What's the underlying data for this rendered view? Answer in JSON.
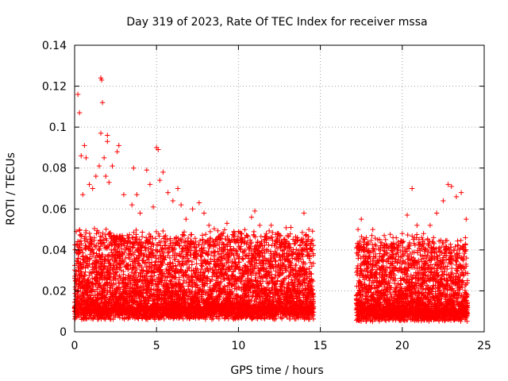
{
  "chart_data": {
    "type": "scatter",
    "title": "Day 319 of 2023, Rate Of TEC Index for receiver mssa",
    "xlabel": "GPS time / hours",
    "ylabel": "ROTI / TECUs",
    "xlim": [
      0,
      25
    ],
    "ylim": [
      0,
      0.14
    ],
    "xticks": [
      0,
      5,
      10,
      15,
      20,
      25
    ],
    "yticks": [
      0,
      0.02,
      0.04,
      0.06,
      0.08,
      0.1,
      0.12,
      0.14
    ],
    "xtick_labels": [
      "0",
      "5",
      "10",
      "15",
      "20",
      "25"
    ],
    "ytick_labels": [
      "0",
      "0.02",
      "0.04",
      "0.06",
      "0.08",
      "0.1",
      "0.12",
      "0.14"
    ],
    "grid": true,
    "marker": "+",
    "series_color": "#ff0000",
    "data_gap_hours": [
      14.6,
      17.2
    ],
    "series": [
      {
        "name": "ROTI",
        "points": [
          [
            0.1,
            0.049
          ],
          [
            0.2,
            0.116
          ],
          [
            0.3,
            0.107
          ],
          [
            0.4,
            0.086
          ],
          [
            0.5,
            0.067
          ],
          [
            0.6,
            0.091
          ],
          [
            0.7,
            0.085
          ],
          [
            0.9,
            0.072
          ],
          [
            1.1,
            0.07
          ],
          [
            1.3,
            0.076
          ],
          [
            1.5,
            0.081
          ],
          [
            1.6,
            0.124
          ],
          [
            1.65,
            0.123
          ],
          [
            1.7,
            0.112
          ],
          [
            1.6,
            0.097
          ],
          [
            1.8,
            0.085
          ],
          [
            1.9,
            0.076
          ],
          [
            2.0,
            0.096
          ],
          [
            2.0,
            0.093
          ],
          [
            2.1,
            0.073
          ],
          [
            2.3,
            0.081
          ],
          [
            2.7,
            0.091
          ],
          [
            2.6,
            0.088
          ],
          [
            3.0,
            0.067
          ],
          [
            3.5,
            0.062
          ],
          [
            3.6,
            0.08
          ],
          [
            3.8,
            0.067
          ],
          [
            4.0,
            0.058
          ],
          [
            4.4,
            0.079
          ],
          [
            4.6,
            0.072
          ],
          [
            4.8,
            0.061
          ],
          [
            5.0,
            0.09
          ],
          [
            5.1,
            0.089
          ],
          [
            5.2,
            0.074
          ],
          [
            5.4,
            0.078
          ],
          [
            5.7,
            0.068
          ],
          [
            6.0,
            0.064
          ],
          [
            6.3,
            0.07
          ],
          [
            6.5,
            0.062
          ],
          [
            6.8,
            0.055
          ],
          [
            7.2,
            0.06
          ],
          [
            7.6,
            0.063
          ],
          [
            7.9,
            0.058
          ],
          [
            8.2,
            0.052
          ],
          [
            8.6,
            0.045
          ],
          [
            9.0,
            0.048
          ],
          [
            9.3,
            0.053
          ],
          [
            9.7,
            0.047
          ],
          [
            10.0,
            0.049
          ],
          [
            10.4,
            0.046
          ],
          [
            10.8,
            0.056
          ],
          [
            11.0,
            0.059
          ],
          [
            11.3,
            0.052
          ],
          [
            11.7,
            0.048
          ],
          [
            12.0,
            0.052
          ],
          [
            12.5,
            0.047
          ],
          [
            12.9,
            0.043
          ],
          [
            13.2,
            0.051
          ],
          [
            13.6,
            0.046
          ],
          [
            14.0,
            0.058
          ],
          [
            14.3,
            0.05
          ],
          [
            14.5,
            0.04
          ],
          [
            17.3,
            0.05
          ],
          [
            17.5,
            0.055
          ],
          [
            17.8,
            0.046
          ],
          [
            18.2,
            0.05
          ],
          [
            18.5,
            0.045
          ],
          [
            18.9,
            0.047
          ],
          [
            19.3,
            0.042
          ],
          [
            19.7,
            0.04
          ],
          [
            20.0,
            0.048
          ],
          [
            20.3,
            0.057
          ],
          [
            20.6,
            0.07
          ],
          [
            20.9,
            0.052
          ],
          [
            21.3,
            0.048
          ],
          [
            21.7,
            0.052
          ],
          [
            22.1,
            0.058
          ],
          [
            22.5,
            0.064
          ],
          [
            22.8,
            0.072
          ],
          [
            23.0,
            0.071
          ],
          [
            23.3,
            0.066
          ],
          [
            23.6,
            0.068
          ],
          [
            23.9,
            0.055
          ]
        ]
      }
    ],
    "dense_band": {
      "description": "dense cluster of ROTI samples",
      "segments": [
        {
          "x_start": 0.0,
          "x_end": 14.6,
          "y_low": 0.006,
          "y_high": 0.045
        },
        {
          "x_start": 17.2,
          "x_end": 24.0,
          "y_low": 0.005,
          "y_high": 0.042
        }
      ]
    }
  }
}
